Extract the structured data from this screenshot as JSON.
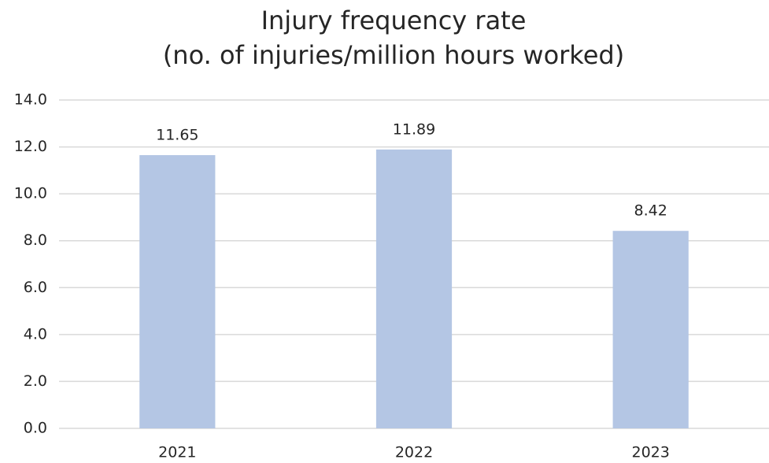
{
  "chart_data": {
    "type": "bar",
    "title": "Injury frequency rate",
    "subtitle": "(no. of injuries/million hours worked)",
    "categories": [
      "2021",
      "2022",
      "2023"
    ],
    "values": [
      11.65,
      11.89,
      8.42
    ],
    "color": "#b4c6e4",
    "ylim": [
      0,
      14
    ],
    "yticks": [
      {
        "value": 0,
        "label": "0.0"
      },
      {
        "value": 2,
        "label": "2.0"
      },
      {
        "value": 4,
        "label": "4.0"
      },
      {
        "value": 6,
        "label": "6.0"
      },
      {
        "value": 8,
        "label": "8.0"
      },
      {
        "value": 10,
        "label": "10.0"
      },
      {
        "value": 12,
        "label": "12.0"
      },
      {
        "value": 14,
        "label": "14.0"
      }
    ],
    "grid": true
  }
}
